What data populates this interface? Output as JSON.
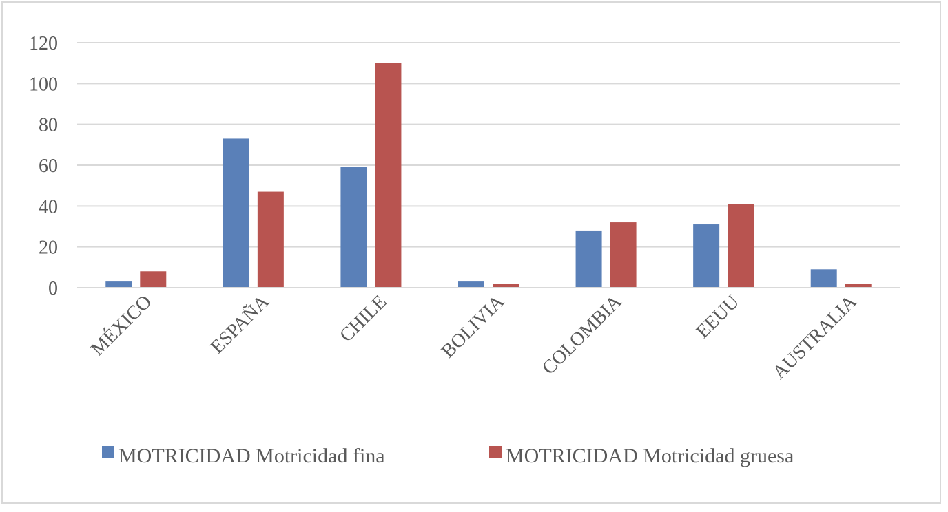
{
  "chart_data": {
    "type": "bar",
    "categories": [
      "MÉXICO",
      "ESPAÑA",
      "CHILE",
      "BOLIVIA",
      "COLOMBIA",
      "EEUU",
      "AUSTRALIA"
    ],
    "series": [
      {
        "name": "MOTRICIDAD Motricidad fina",
        "color": "#5a80b8",
        "values": [
          3,
          73,
          59,
          3,
          28,
          31,
          9
        ]
      },
      {
        "name": "MOTRICIDAD Motricidad gruesa",
        "color": "#b85450",
        "values": [
          8,
          47,
          110,
          2,
          32,
          41,
          2
        ]
      }
    ],
    "ylim": [
      0,
      120
    ],
    "yticks": [
      "0",
      "20",
      "40",
      "60",
      "80",
      "100",
      "120"
    ],
    "grid": true,
    "legend_position": "bottom"
  }
}
